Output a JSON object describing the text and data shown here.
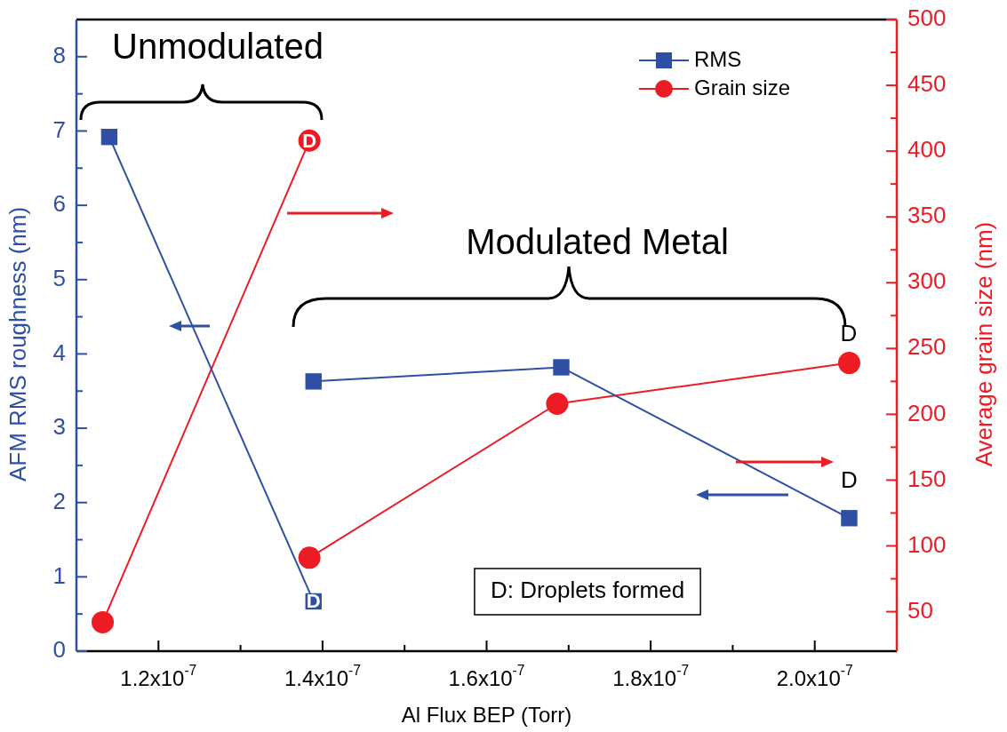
{
  "chart_data": {
    "type": "line",
    "xlabel": "Al Flux BEP (Torr)",
    "ylabel": "AFM RMS roughness (nm)",
    "y2label": "Average grain size (nm)",
    "xlim": [
      1.1e-07,
      2.1e-07
    ],
    "xticks": [
      {
        "value": 1.2e-07,
        "label": "1.2x10$^{-7}$"
      },
      {
        "value": 1.3e-07,
        "label": null
      },
      {
        "value": 1.4e-07,
        "label": "1.4x10$^{-7}$"
      },
      {
        "value": 1.5e-07,
        "label": null
      },
      {
        "value": 1.6e-07,
        "label": "1.6x10$^{-7}$"
      },
      {
        "value": 1.7e-07,
        "label": null
      },
      {
        "value": 1.8e-07,
        "label": "1.8x10$^{-7}$"
      },
      {
        "value": 1.9e-07,
        "label": null
      },
      {
        "value": 2e-07,
        "label": "2.0x10$^{-7}$"
      }
    ],
    "ylim": [
      0,
      8.5
    ],
    "yticks": [
      0,
      {
        "value": 0.5,
        "label": null
      },
      1,
      {
        "value": 1.5,
        "label": null
      },
      2,
      {
        "value": 2.5,
        "label": null
      },
      3,
      {
        "value": 3.5,
        "label": null
      },
      4,
      {
        "value": 4.5,
        "label": null
      },
      5,
      {
        "value": 5.5,
        "label": null
      },
      6,
      {
        "value": 6.5,
        "label": null
      },
      7,
      {
        "value": 7.5,
        "label": null
      },
      8
    ],
    "y2lim": [
      20,
      500
    ],
    "y2ticks": [
      50,
      {
        "value": 75,
        "label": null
      },
      100,
      {
        "value": 125,
        "label": null
      },
      150,
      {
        "value": 175,
        "label": null
      },
      200,
      {
        "value": 225,
        "label": null
      },
      250,
      {
        "value": 275,
        "label": null
      },
      300,
      {
        "value": 325,
        "label": null
      },
      350,
      {
        "value": 375,
        "label": null
      },
      400,
      {
        "value": 425,
        "label": null
      },
      450,
      {
        "value": 475,
        "label": null
      },
      500
    ],
    "legend": "top right",
    "grid": false,
    "line_style": "solid",
    "series": [
      {
        "name": "RMS",
        "color": "#2e4fa3",
        "marker": "square",
        "x": [
          1.14e-07,
          1.389e-07
        ],
        "values": [
          6.92,
          0.67
        ]
      },
      {
        "name": "Grain size",
        "color": "#ed1c24",
        "marker": "circle",
        "axis": "y2",
        "x": [
          1.132e-07,
          1.384e-07
        ],
        "values": [
          42,
          408
        ]
      },
      {
        "color": "#2e4fa3",
        "marker": "square",
        "x": [
          1.389e-07,
          1.691e-07,
          2.042e-07
        ],
        "values": [
          3.63,
          3.82,
          1.79
        ]
      },
      {
        "color": "#ed1c24",
        "marker": "circle",
        "axis": "y2",
        "x": [
          1.384e-07,
          1.686e-07,
          2.042e-07
        ],
        "values": [
          91,
          208,
          239
        ]
      }
    ],
    "annotations": [
      "Unmodulated",
      "Modulated Metal",
      "D: Droplets formed",
      {
        "text": "D",
        "x": 1.389e-07,
        "y": 0.67
      },
      {
        "text": "D",
        "x": 1.384e-07,
        "y": 6.86
      },
      "D",
      {
        "text": "D",
        "x": 2.042e-07,
        "y": 1.79
      }
    ]
  }
}
